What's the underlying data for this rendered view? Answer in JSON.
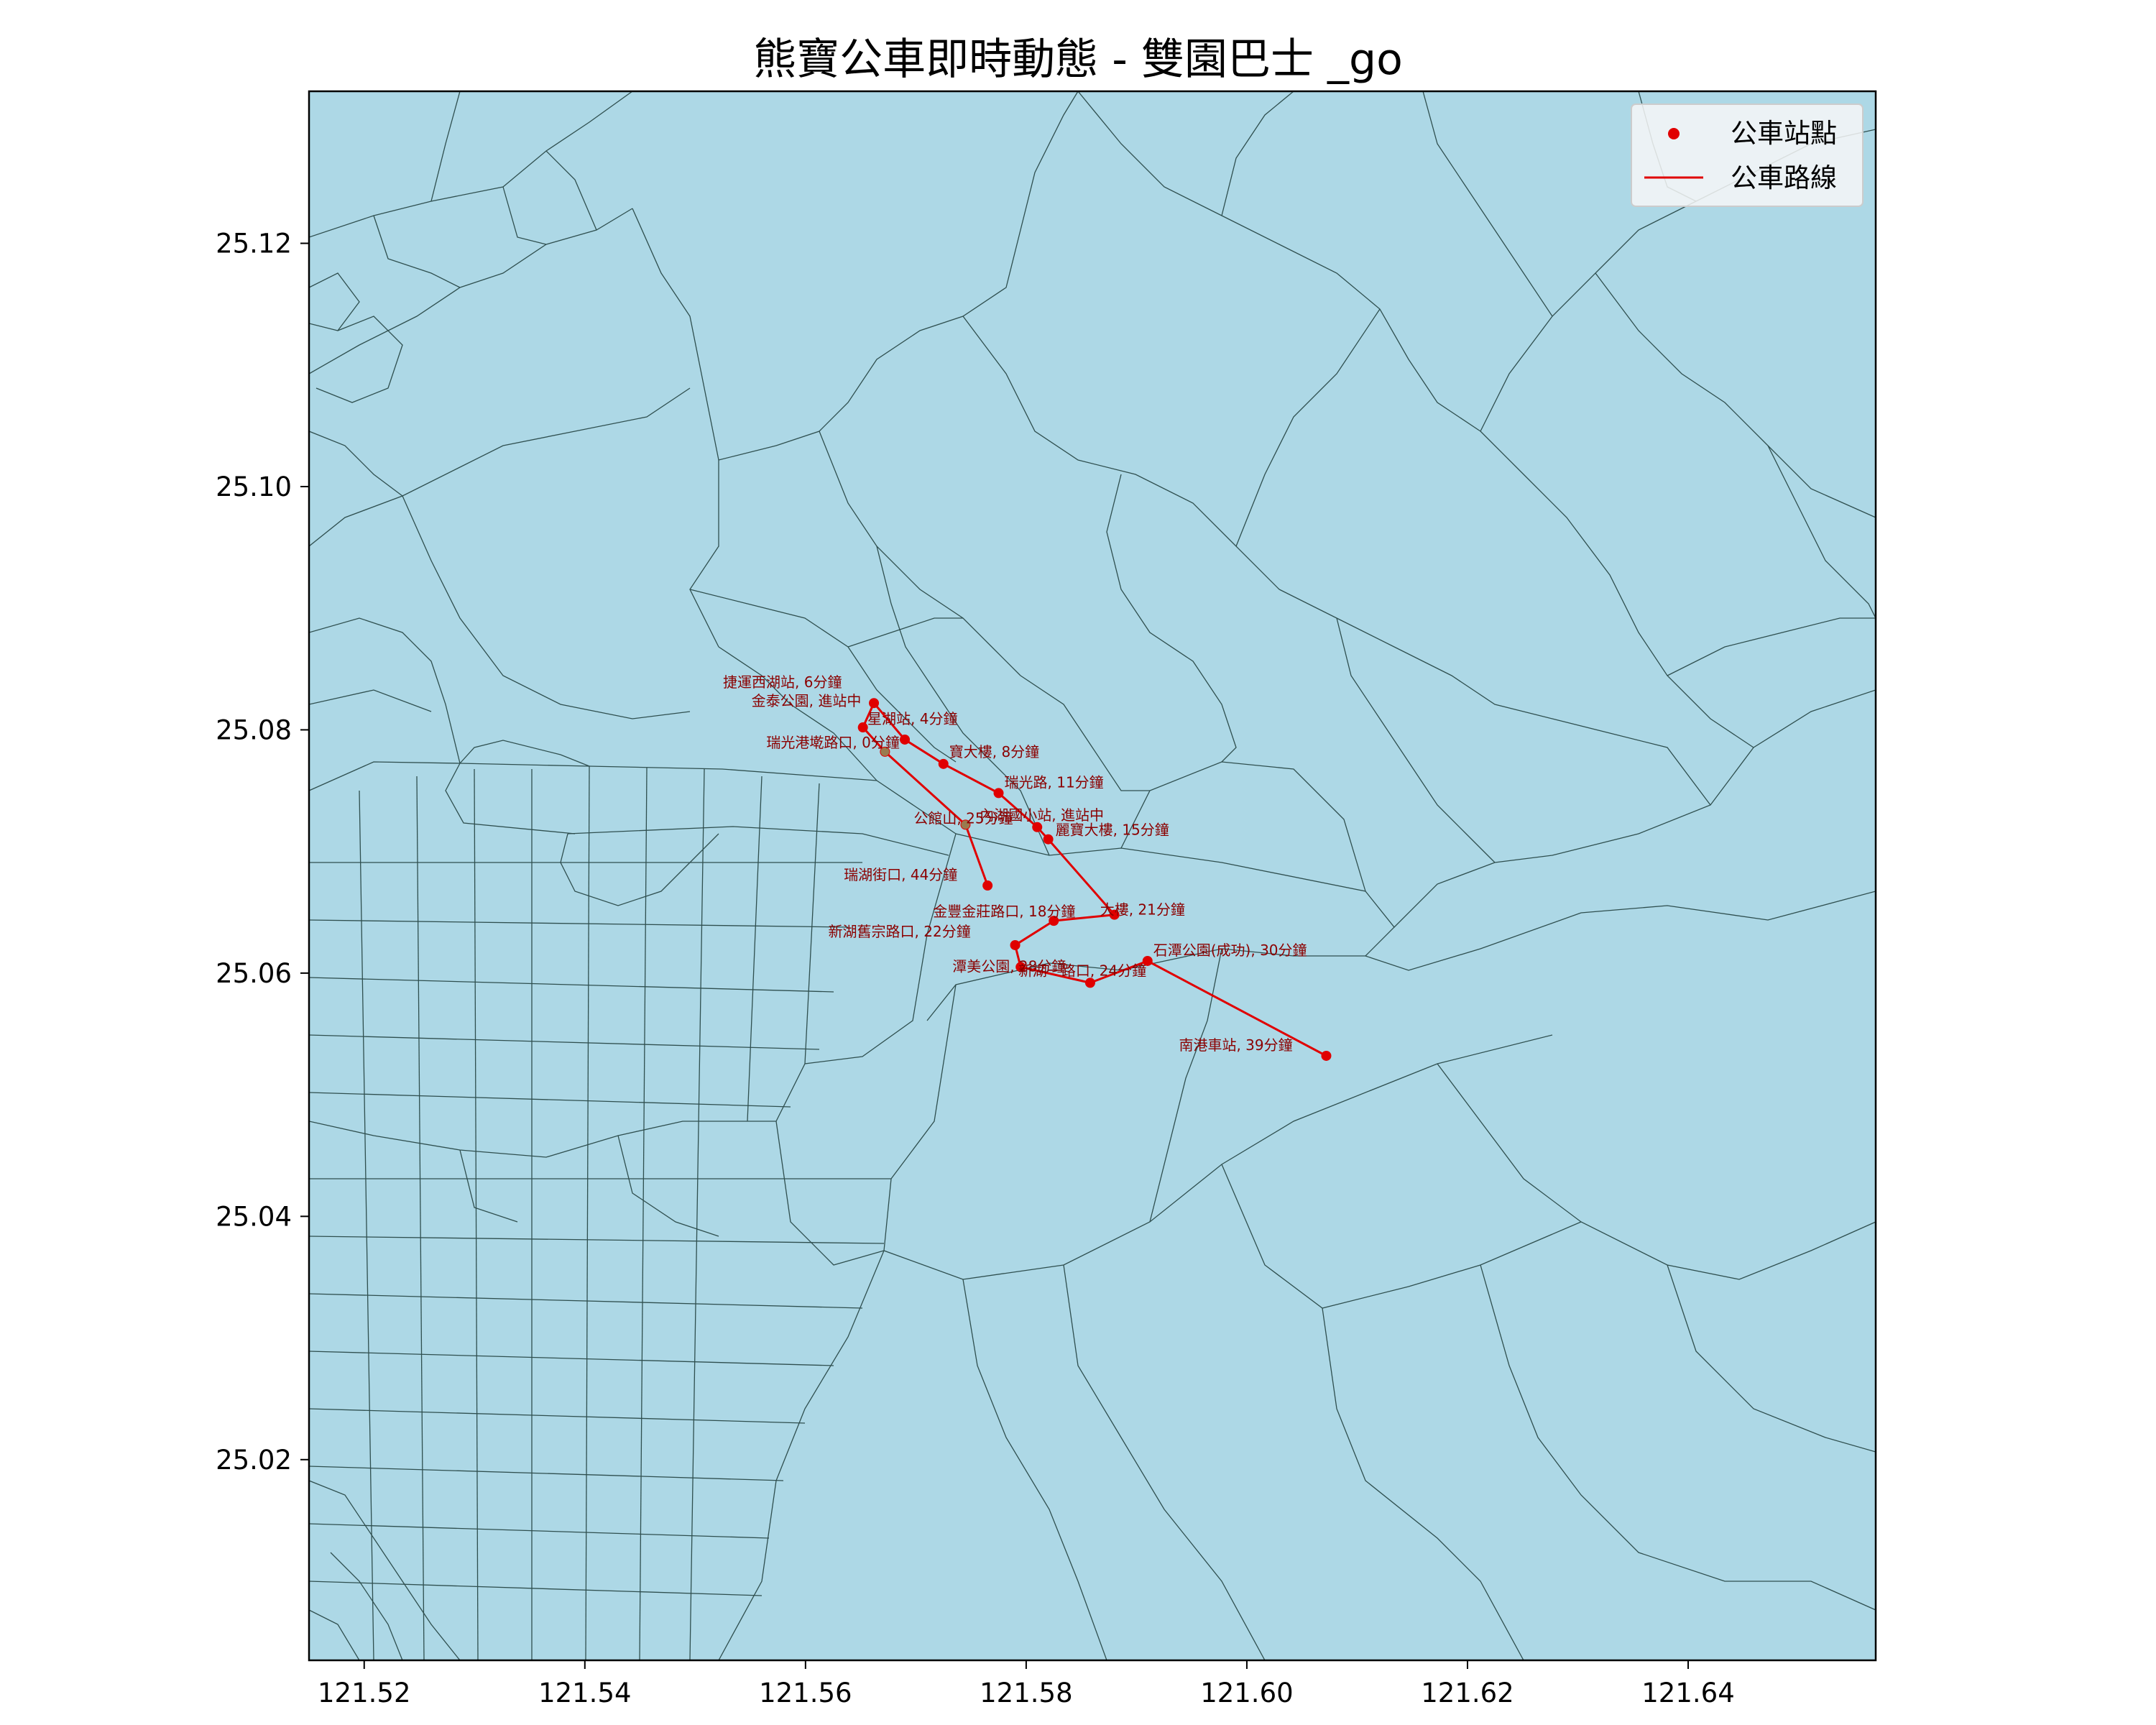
{
  "title": "熊寶公車即時動態 - 雙園巴士 _go",
  "colors": {
    "map_fill": "#add8e6",
    "boundary": "#2f4f4f",
    "route": "#e00000",
    "stop": "#e00000",
    "label": "#8b0000",
    "bus": "#9a7b4f"
  },
  "legend": {
    "placement": "upper-right",
    "items": [
      {
        "label": "公車站點",
        "kind": "marker"
      },
      {
        "label": "公車路線",
        "kind": "line"
      }
    ]
  },
  "axes": {
    "x_ticks": [
      "121.52",
      "121.54",
      "121.56",
      "121.58",
      "121.60",
      "121.62",
      "121.64"
    ],
    "y_ticks": [
      "25.12",
      "25.10",
      "25.08",
      "25.06",
      "25.04",
      "25.02"
    ],
    "xlim": [
      121.515,
      121.657
    ],
    "ylim": [
      25.0035,
      25.1325
    ]
  },
  "route": {
    "stops": [
      {
        "name": "瑞湖街口, 44分鐘",
        "lon": 121.5765,
        "lat": 25.0672
      },
      {
        "name": "公館山, 25分鐘",
        "lon": 121.5745,
        "lat": 25.0722
      },
      {
        "name": "瑞光港墘路口, 0分鐘",
        "lon": 121.5672,
        "lat": 25.0782
      },
      {
        "name": "金泰公園, 進站中",
        "lon": 121.5652,
        "lat": 25.0802
      },
      {
        "name": "捷運西湖站, 6分鐘",
        "lon": 121.5662,
        "lat": 25.0822
      },
      {
        "name": "星湖站, 4分鐘",
        "lon": 121.569,
        "lat": 25.0792
      },
      {
        "name": "寶大樓, 8分鐘",
        "lon": 121.5725,
        "lat": 25.0772
      },
      {
        "name": "瑞光路, 11分鐘",
        "lon": 121.5775,
        "lat": 25.0748
      },
      {
        "name": "內湖國小站, 進站中",
        "lon": 121.581,
        "lat": 25.072
      },
      {
        "name": "麗寶大樓, 15分鐘",
        "lon": 121.582,
        "lat": 25.071
      },
      {
        "name": "大樓, 21分鐘",
        "lon": 121.588,
        "lat": 25.0648
      },
      {
        "name": "金豐金莊路口, 18分鐘",
        "lon": 121.5825,
        "lat": 25.0643
      },
      {
        "name": "新湖舊宗路口, 22分鐘",
        "lon": 121.579,
        "lat": 25.0623
      },
      {
        "name": "潭美公園, 28分鐘",
        "lon": 121.5795,
        "lat": 25.0605
      },
      {
        "name": "新湖一路口, 24分鐘",
        "lon": 121.5858,
        "lat": 25.0592
      },
      {
        "name": "石潭公園(成功), 30分鐘",
        "lon": 121.591,
        "lat": 25.061
      },
      {
        "name": "南港車站, 39分鐘",
        "lon": 121.6072,
        "lat": 25.0532
      }
    ],
    "bus_markers": [
      {
        "lon": 121.5672,
        "lat": 25.0782
      },
      {
        "lon": 121.5745,
        "lat": 25.0722
      }
    ]
  }
}
